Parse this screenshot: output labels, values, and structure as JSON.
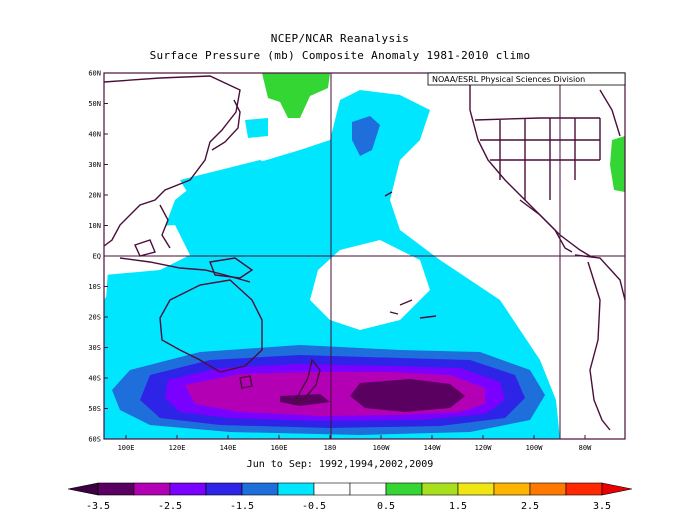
{
  "title": "NCEP/NCAR Reanalysis",
  "subtitle": "Surface Pressure (mb) Composite Anomaly 1981-2010 climo",
  "credit": "NOAA/ESRL Physical Sciences Division",
  "footer": "Jun to Sep: 1992,1994,2002,2009",
  "lat_labels": [
    "60N",
    "50N",
    "40N",
    "30N",
    "20N",
    "10N",
    "EQ",
    "10S",
    "20S",
    "30S",
    "40S",
    "50S",
    "60S"
  ],
  "lon_labels": [
    "100E",
    "120E",
    "140E",
    "160E",
    "180",
    "160W",
    "140W",
    "120W",
    "100W",
    "80W"
  ],
  "colorbar": {
    "labels": [
      "-3.5",
      "-2.5",
      "-1.5",
      "-0.5",
      "0.5",
      "1.5",
      "2.5",
      "3.5"
    ],
    "colors": [
      "#5a0060",
      "#b400b4",
      "#7a00ff",
      "#2e24e8",
      "#1e6edc",
      "#00e6ff",
      "#ffffff",
      "#ffffff",
      "#34d634",
      "#a8e01e",
      "#f0e614",
      "#ffb400",
      "#ff7800",
      "#ff2800"
    ]
  },
  "colors": {
    "land_outline": "#4a0e3a",
    "grid": "#4a0e3a"
  }
}
